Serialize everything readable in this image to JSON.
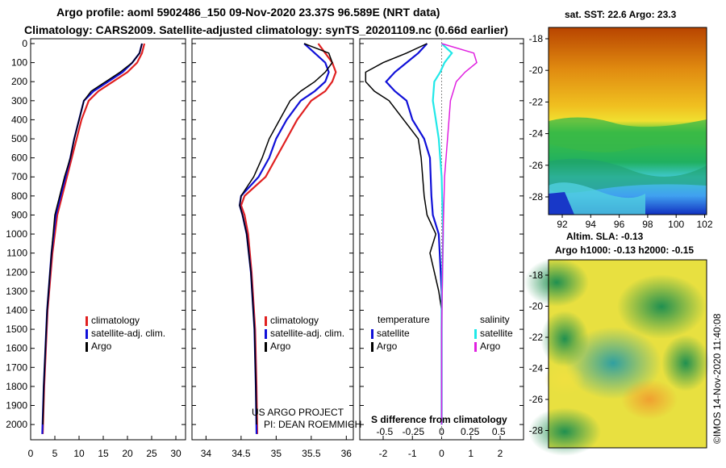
{
  "header": {
    "line1": "Argo profile: aoml 5902486_150 09-Nov-2020 23.37S 96.589E (NRT data)",
    "line2": "Climatology: CARS2009. Satellite-adjusted climatology: synTS_20201109.nc (0.66d earlier)"
  },
  "colors": {
    "climatology": "#e02020",
    "satellite": "#1010d8",
    "argo": "#000000",
    "sat_salinity": "#20e8e8",
    "argo_salinity": "#e020e0"
  },
  "chart_data": [
    {
      "type": "line",
      "id": "temperature",
      "xlabel": "",
      "ylabel": "",
      "xlim": [
        0,
        32
      ],
      "ylim": [
        2080,
        0
      ],
      "xticks": [
        "0",
        "5",
        "10",
        "15",
        "20",
        "25",
        "30"
      ],
      "xtick_values": [
        0,
        5,
        10,
        15,
        20,
        25,
        30
      ],
      "yticks": [
        "0",
        "100",
        "200",
        "300",
        "400",
        "500",
        "600",
        "700",
        "800",
        "900",
        "1000",
        "1100",
        "1200",
        "1300",
        "1400",
        "1500",
        "1600",
        "1700",
        "1800",
        "1900",
        "2000"
      ],
      "ytick_values": [
        0,
        100,
        200,
        300,
        400,
        500,
        600,
        700,
        800,
        900,
        1000,
        1100,
        1200,
        1300,
        1400,
        1500,
        1600,
        1700,
        1800,
        1900,
        2000
      ],
      "legend": [
        "climatology",
        "satellite-adj. clim.",
        "Argo"
      ],
      "series": [
        {
          "name": "climatology",
          "color": "#e02020",
          "x": [
            23.5,
            23,
            22,
            20,
            17,
            14,
            12,
            10.5,
            9.5,
            8.5,
            7.5,
            6.5,
            5.5,
            4.5,
            3.5,
            2.8,
            2.5
          ],
          "y": [
            0,
            50,
            100,
            150,
            200,
            250,
            300,
            400,
            500,
            600,
            700,
            800,
            900,
            1100,
            1400,
            1800,
            2050
          ]
        },
        {
          "name": "satellite-adj. clim.",
          "color": "#1010d8",
          "x": [
            23,
            22.5,
            21,
            19,
            16,
            13,
            11,
            10,
            9,
            8.2,
            7.2,
            6.2,
            5.2,
            4.3,
            3.4,
            2.7,
            2.4
          ],
          "y": [
            0,
            50,
            100,
            150,
            200,
            250,
            300,
            400,
            500,
            600,
            700,
            800,
            900,
            1100,
            1400,
            1800,
            2050
          ]
        },
        {
          "name": "Argo",
          "color": "#000000",
          "x": [
            23,
            22.5,
            21,
            18.5,
            15.5,
            12.5,
            11,
            10,
            9,
            8.2,
            7,
            6,
            5,
            4.3,
            3.4,
            2.7,
            2.5
          ],
          "y": [
            0,
            50,
            100,
            150,
            200,
            250,
            300,
            400,
            500,
            600,
            700,
            800,
            900,
            1100,
            1400,
            1800,
            2000
          ]
        }
      ]
    },
    {
      "type": "line",
      "id": "salinity",
      "xlabel": "",
      "ylabel": "",
      "xlim": [
        33.8,
        36.1
      ],
      "ylim": [
        2080,
        0
      ],
      "xticks": [
        "34",
        "34.5",
        "35",
        "35.5",
        "36"
      ],
      "xtick_values": [
        34,
        34.5,
        35,
        35.5,
        36
      ],
      "legend": [
        "climatology",
        "satellite-adj. clim.",
        "Argo"
      ],
      "annotation": [
        "US ARGO PROJECT",
        "PI: DEAN ROEMMICH"
      ],
      "series": [
        {
          "name": "climatology",
          "color": "#e02020",
          "x": [
            35.6,
            35.7,
            35.8,
            35.85,
            35.8,
            35.7,
            35.5,
            35.3,
            35.15,
            35.0,
            34.85,
            34.55,
            34.5,
            34.55,
            34.6,
            34.65,
            34.7,
            34.72,
            34.73
          ],
          "y": [
            0,
            50,
            100,
            150,
            200,
            250,
            300,
            400,
            500,
            600,
            700,
            800,
            850,
            900,
            1000,
            1200,
            1500,
            1800,
            2050
          ]
        },
        {
          "name": "satellite-adj. clim.",
          "color": "#1010d8",
          "x": [
            35.4,
            35.55,
            35.7,
            35.75,
            35.7,
            35.55,
            35.35,
            35.15,
            35.0,
            34.9,
            34.75,
            34.5,
            34.48,
            34.52,
            34.58,
            34.64,
            34.69,
            34.71,
            34.72
          ],
          "y": [
            0,
            50,
            100,
            150,
            200,
            250,
            300,
            400,
            500,
            600,
            700,
            800,
            850,
            900,
            1000,
            1200,
            1500,
            1800,
            2050
          ]
        },
        {
          "name": "Argo",
          "color": "#000000",
          "x": [
            35.4,
            35.75,
            35.8,
            35.7,
            35.55,
            35.35,
            35.2,
            35.05,
            34.9,
            34.8,
            34.68,
            34.5,
            34.48,
            34.52,
            34.58,
            34.64,
            34.69,
            34.71,
            34.72
          ],
          "y": [
            0,
            50,
            100,
            150,
            200,
            250,
            300,
            400,
            500,
            600,
            700,
            800,
            850,
            900,
            1000,
            1200,
            1500,
            1800,
            2000
          ]
        }
      ]
    },
    {
      "type": "line",
      "id": "difference",
      "xlim": [
        -2.8,
        2.8
      ],
      "ylim": [
        2080,
        0
      ],
      "xticks": [
        "-2",
        "-1",
        "0",
        "1",
        "2"
      ],
      "xtick_values": [
        -2,
        -1,
        0,
        1,
        2
      ],
      "top_ticks": [
        "-0.5",
        "-0.25",
        "0",
        "0.25",
        "0.5"
      ],
      "top_tick_values": [
        -1.95,
        -0.97,
        0,
        0.97,
        1.95
      ],
      "xlabel": "S difference from climatology",
      "legend_left_title": "temperature",
      "legend_right_title": "salinity",
      "legend_entries": [
        "satellite",
        "Argo"
      ],
      "series": [
        {
          "name": "temperature satellite",
          "color": "#1010d8",
          "x": [
            -0.5,
            -0.8,
            -1.2,
            -1.6,
            -1.9,
            -1.6,
            -1.2,
            -1.0,
            -0.6,
            -0.4,
            -0.35,
            -0.3,
            -0.1,
            0,
            0
          ],
          "y": [
            0,
            50,
            100,
            150,
            200,
            250,
            300,
            400,
            500,
            600,
            800,
            900,
            1000,
            1300,
            2000
          ]
        },
        {
          "name": "temperature Argo",
          "color": "#000000",
          "x": [
            -0.5,
            -1.2,
            -2.0,
            -2.6,
            -2.6,
            -2.3,
            -1.8,
            -1.3,
            -0.8,
            -0.7,
            -0.6,
            -0.5,
            -0.2,
            -0.4,
            -0.1,
            0
          ],
          "y": [
            0,
            50,
            100,
            150,
            200,
            250,
            300,
            400,
            500,
            600,
            800,
            900,
            1000,
            1100,
            1300,
            1400
          ]
        },
        {
          "name": "salinity satellite",
          "color": "#20e8e8",
          "x": [
            0,
            0.35,
            0.1,
            -0.05,
            -0.25,
            -0.3,
            -0.2,
            -0.1,
            0,
            0.05,
            0,
            0
          ],
          "y": [
            0,
            50,
            100,
            150,
            200,
            300,
            400,
            500,
            700,
            1000,
            1400,
            2000
          ]
        },
        {
          "name": "salinity Argo",
          "color": "#e020e0",
          "x": [
            0,
            1.1,
            1.2,
            0.8,
            0.5,
            0.3,
            0.2,
            0.1,
            0.05,
            0,
            0
          ],
          "y": [
            0,
            50,
            100,
            150,
            200,
            300,
            500,
            700,
            1000,
            1500,
            2000
          ]
        }
      ]
    }
  ],
  "sst_map": {
    "title": "sat. SST: 22.6 Argo: 23.3",
    "xticks": [
      "92",
      "94",
      "96",
      "98",
      "100",
      "102"
    ],
    "yticks": [
      "-18",
      "-20",
      "-22",
      "-24",
      "-26",
      "-28"
    ]
  },
  "sla_map": {
    "title_line1": "Altim. SLA: -0.13",
    "title_line2": "Argo h1000: -0.13 h2000: -0.15",
    "yticks": [
      "-18",
      "-20",
      "-22",
      "-24",
      "-26",
      "-28"
    ]
  },
  "footer_stamp": "©IMOS 14-Nov-2020 11:40:08"
}
